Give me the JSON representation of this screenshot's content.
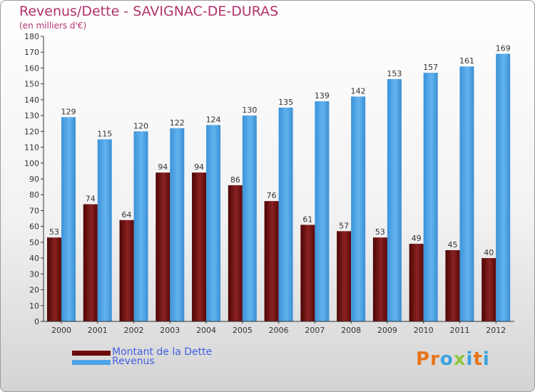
{
  "header": {
    "title": "Revenus/Dette - SAVIGNAC-DE-DURAS",
    "subtitle": "(en milliers d'€)"
  },
  "chart_data": {
    "type": "bar",
    "categories": [
      "2000",
      "2001",
      "2002",
      "2003",
      "2004",
      "2005",
      "2006",
      "2007",
      "2008",
      "2009",
      "2010",
      "2011",
      "2012"
    ],
    "series": [
      {
        "name": "Montant de la Dette",
        "color": "#6b0a0a",
        "values": [
          53,
          74,
          64,
          94,
          94,
          86,
          76,
          61,
          57,
          53,
          49,
          45,
          40
        ]
      },
      {
        "name": "Revenus",
        "color": "#4ea4e6",
        "values": [
          129,
          115,
          120,
          122,
          124,
          130,
          135,
          139,
          142,
          153,
          157,
          161,
          169
        ]
      }
    ],
    "ylim": [
      0,
      180
    ],
    "yticks": [
      0,
      10,
      20,
      30,
      40,
      50,
      60,
      70,
      80,
      90,
      100,
      110,
      120,
      130,
      140,
      150,
      160,
      170,
      180
    ],
    "grid": false,
    "legend_position": "bottom-left"
  },
  "legend": [
    {
      "label": "Montant de la Dette",
      "color": "#6b0a0a"
    },
    {
      "label": "Revenus",
      "color": "#4ea4e6"
    }
  ],
  "logo": {
    "text": "Proxiti",
    "letter_colors": [
      "#e8741a",
      "#e8741a",
      "#3aa2de",
      "#8cc63f",
      "#3aa2de",
      "#e8741a",
      "#3aa2de"
    ]
  }
}
